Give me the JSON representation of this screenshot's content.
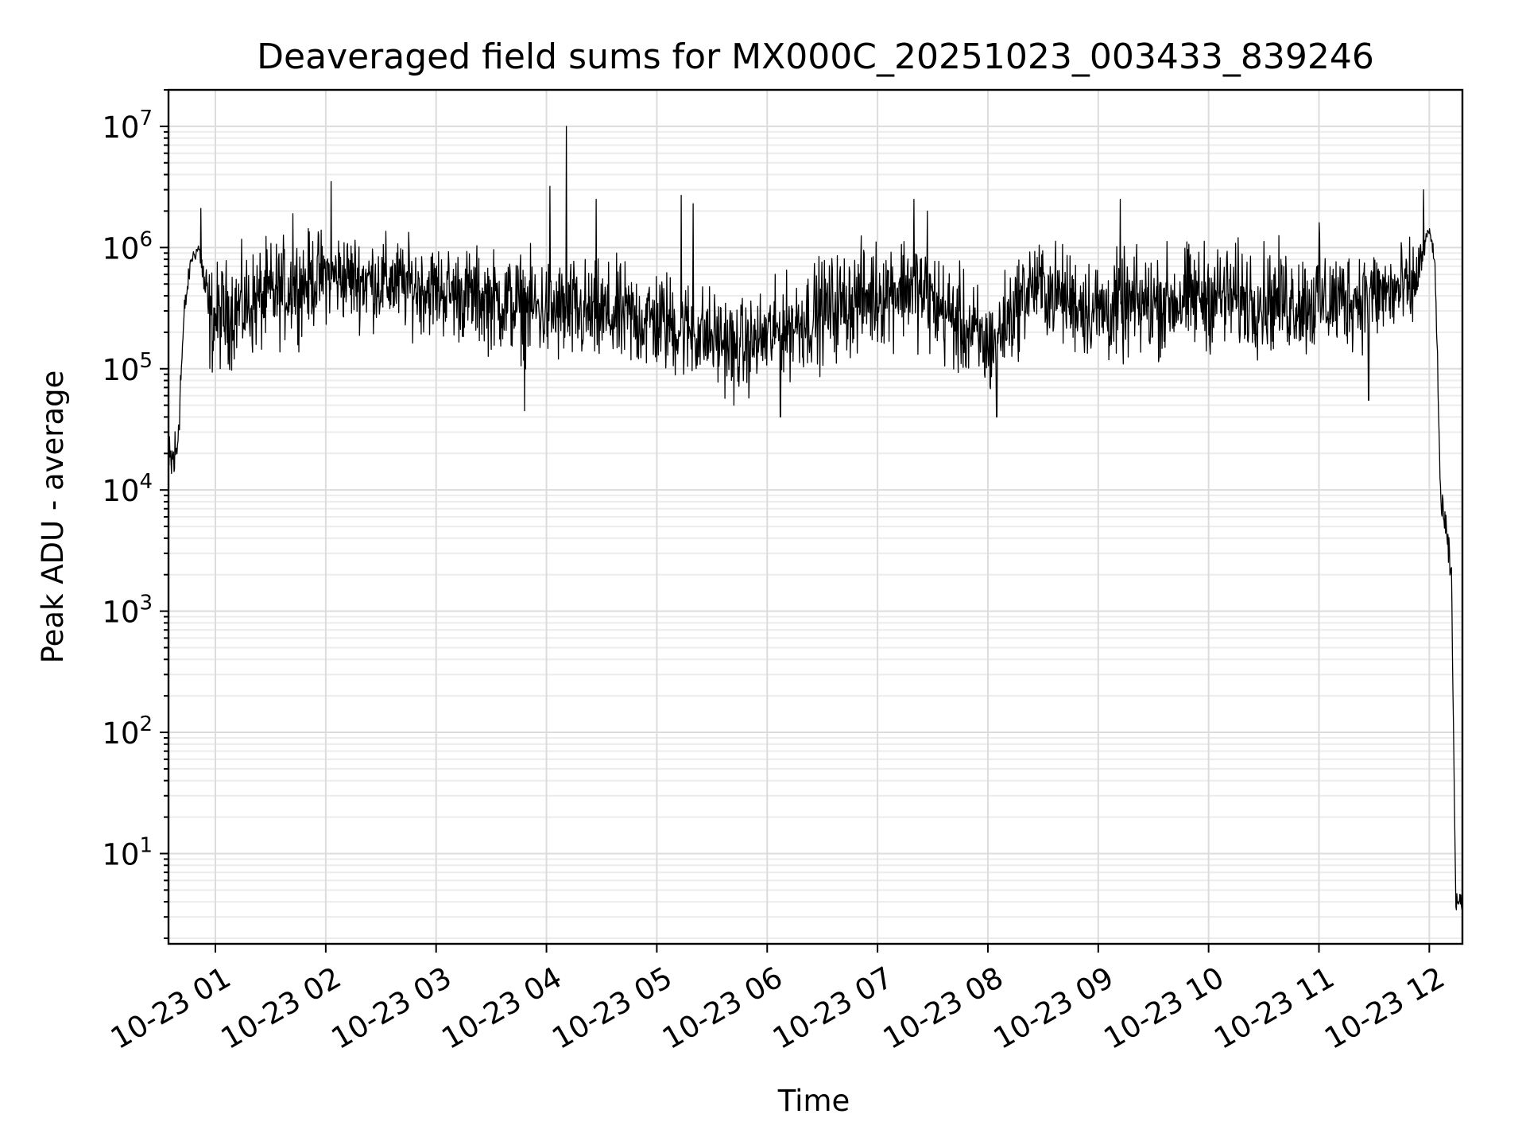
{
  "chart_data": {
    "type": "line",
    "title": "Deaveraged field sums for MX000C_20251023_003433_839246",
    "xlabel": "Time",
    "ylabel": "Peak ADU - average",
    "yscale": "log",
    "ylim": [
      1.8,
      20000000
    ],
    "xlim_hours": [
      0.575,
      12.3
    ],
    "grid": true,
    "x_ticks": [
      {
        "hour": 1,
        "label": "10-23 01"
      },
      {
        "hour": 2,
        "label": "10-23 02"
      },
      {
        "hour": 3,
        "label": "10-23 03"
      },
      {
        "hour": 4,
        "label": "10-23 04"
      },
      {
        "hour": 5,
        "label": "10-23 05"
      },
      {
        "hour": 6,
        "label": "10-23 06"
      },
      {
        "hour": 7,
        "label": "10-23 07"
      },
      {
        "hour": 8,
        "label": "10-23 08"
      },
      {
        "hour": 9,
        "label": "10-23 09"
      },
      {
        "hour": 10,
        "label": "10-23 10"
      },
      {
        "hour": 11,
        "label": "10-23 11"
      },
      {
        "hour": 12,
        "label": "10-23 12"
      }
    ],
    "y_ticks": [
      {
        "exp": 1,
        "base": "10",
        "sup": "1"
      },
      {
        "exp": 2,
        "base": "10",
        "sup": "2"
      },
      {
        "exp": 3,
        "base": "10",
        "sup": "3"
      },
      {
        "exp": 4,
        "base": "10",
        "sup": "4"
      },
      {
        "exp": 5,
        "base": "10",
        "sup": "5"
      },
      {
        "exp": 6,
        "base": "10",
        "sup": "6"
      },
      {
        "exp": 7,
        "base": "10",
        "sup": "7"
      }
    ],
    "series": [
      {
        "name": "Peak ADU - average",
        "description": "noisy baseline ~1e5 to 1e6 between ~00:50 and ~12:00",
        "envelope": [
          {
            "hour": 0.58,
            "median": 15000,
            "spread": 0.25
          },
          {
            "hour": 0.65,
            "median": 20000,
            "spread": 0.25
          },
          {
            "hour": 0.72,
            "median": 300000,
            "spread": 0.1
          },
          {
            "hour": 0.78,
            "median": 800000,
            "spread": 0.05
          },
          {
            "hour": 0.85,
            "median": 1000000,
            "spread": 0.05
          },
          {
            "hour": 0.95,
            "median": 250000,
            "spread": 0.35
          },
          {
            "hour": 1.5,
            "median": 400000,
            "spread": 0.35
          },
          {
            "hour": 2.0,
            "median": 600000,
            "spread": 0.3
          },
          {
            "hour": 3.0,
            "median": 450000,
            "spread": 0.3
          },
          {
            "hour": 4.0,
            "median": 300000,
            "spread": 0.35
          },
          {
            "hour": 5.0,
            "median": 250000,
            "spread": 0.35
          },
          {
            "hour": 5.8,
            "median": 150000,
            "spread": 0.3
          },
          {
            "hour": 6.5,
            "median": 300000,
            "spread": 0.35
          },
          {
            "hour": 7.3,
            "median": 500000,
            "spread": 0.35
          },
          {
            "hour": 8.0,
            "median": 150000,
            "spread": 0.35
          },
          {
            "hour": 8.4,
            "median": 500000,
            "spread": 0.3
          },
          {
            "hour": 9.0,
            "median": 300000,
            "spread": 0.35
          },
          {
            "hour": 10.0,
            "median": 400000,
            "spread": 0.35
          },
          {
            "hour": 11.0,
            "median": 350000,
            "spread": 0.35
          },
          {
            "hour": 11.85,
            "median": 450000,
            "spread": 0.3
          },
          {
            "hour": 12.0,
            "median": 1400000,
            "spread": 0.03
          },
          {
            "hour": 12.05,
            "median": 800000,
            "spread": 0.05
          },
          {
            "hour": 12.1,
            "median": 10000,
            "spread": 0.15
          },
          {
            "hour": 12.2,
            "median": 2000,
            "spread": 0.1
          },
          {
            "hour": 12.24,
            "median": 4,
            "spread": 0.05
          },
          {
            "hour": 12.3,
            "median": 4,
            "spread": 0.05
          }
        ],
        "spikes": [
          {
            "hour": 0.87,
            "value": 2100000
          },
          {
            "hour": 1.7,
            "value": 1900000
          },
          {
            "hour": 2.05,
            "value": 3500000
          },
          {
            "hour": 2.6,
            "value": 700000
          },
          {
            "hour": 3.8,
            "value": 45000
          },
          {
            "hour": 4.03,
            "value": 3200000
          },
          {
            "hour": 4.18,
            "value": 10000000
          },
          {
            "hour": 4.45,
            "value": 2500000
          },
          {
            "hour": 5.22,
            "value": 2700000
          },
          {
            "hour": 5.33,
            "value": 2300000
          },
          {
            "hour": 5.7,
            "value": 50000
          },
          {
            "hour": 6.12,
            "value": 40000
          },
          {
            "hour": 7.33,
            "value": 2500000
          },
          {
            "hour": 7.45,
            "value": 2000000
          },
          {
            "hour": 8.08,
            "value": 40000
          },
          {
            "hour": 9.2,
            "value": 2500000
          },
          {
            "hour": 11.0,
            "value": 1600000
          },
          {
            "hour": 11.45,
            "value": 55000
          },
          {
            "hour": 11.95,
            "value": 3000000
          }
        ]
      }
    ]
  }
}
